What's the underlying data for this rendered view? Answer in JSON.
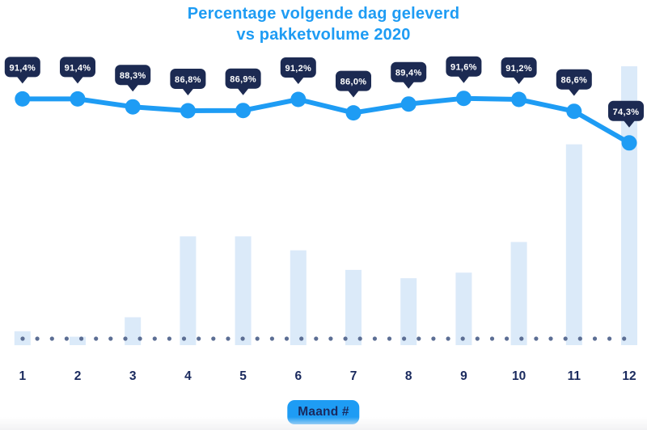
{
  "title": {
    "line1": "Percentage volgende dag geleverd",
    "line2": "vs pakketvolume 2020"
  },
  "xlabel_badge": "Maand #",
  "colors": {
    "accent_blue": "#1E9CF4",
    "bubble_navy": "#1C2A52",
    "bubble_text": "#FFFFFF",
    "label_navy": "#1A2A5E",
    "bar_fill": "#DBEAF9",
    "dot_fill": "#5C6E94"
  },
  "chart_data": {
    "type": "combo",
    "title": "Percentage volgende dag geleverd vs pakketvolume 2020",
    "xlabel": "Maand #",
    "ylabel": "",
    "categories": [
      "1",
      "2",
      "3",
      "4",
      "5",
      "6",
      "7",
      "8",
      "9",
      "10",
      "11",
      "12"
    ],
    "series": [
      {
        "name": "percentage-volgende-dag-geleverd",
        "type": "line",
        "unit": "%",
        "values": [
          91.4,
          91.4,
          88.3,
          86.8,
          86.9,
          91.2,
          86.0,
          89.4,
          91.6,
          91.2,
          86.6,
          74.3
        ],
        "labels": [
          "91,4%",
          "91,4%",
          "88,3%",
          "86,8%",
          "86,9%",
          "91,2%",
          "86,0%",
          "89,4%",
          "91,6%",
          "91,2%",
          "86,6%",
          "74,3%"
        ]
      },
      {
        "name": "pakketvolume",
        "type": "bar",
        "unit": "relative-estimate-no-axis-shown",
        "values": [
          5,
          3,
          10,
          39,
          39,
          34,
          27,
          24,
          26,
          37,
          72,
          100
        ]
      }
    ],
    "legend": "none",
    "grid": "dotted-baseline-only",
    "y_axis": "hidden",
    "data_label_style": "navy-speech-bubbles-above-line-points"
  }
}
